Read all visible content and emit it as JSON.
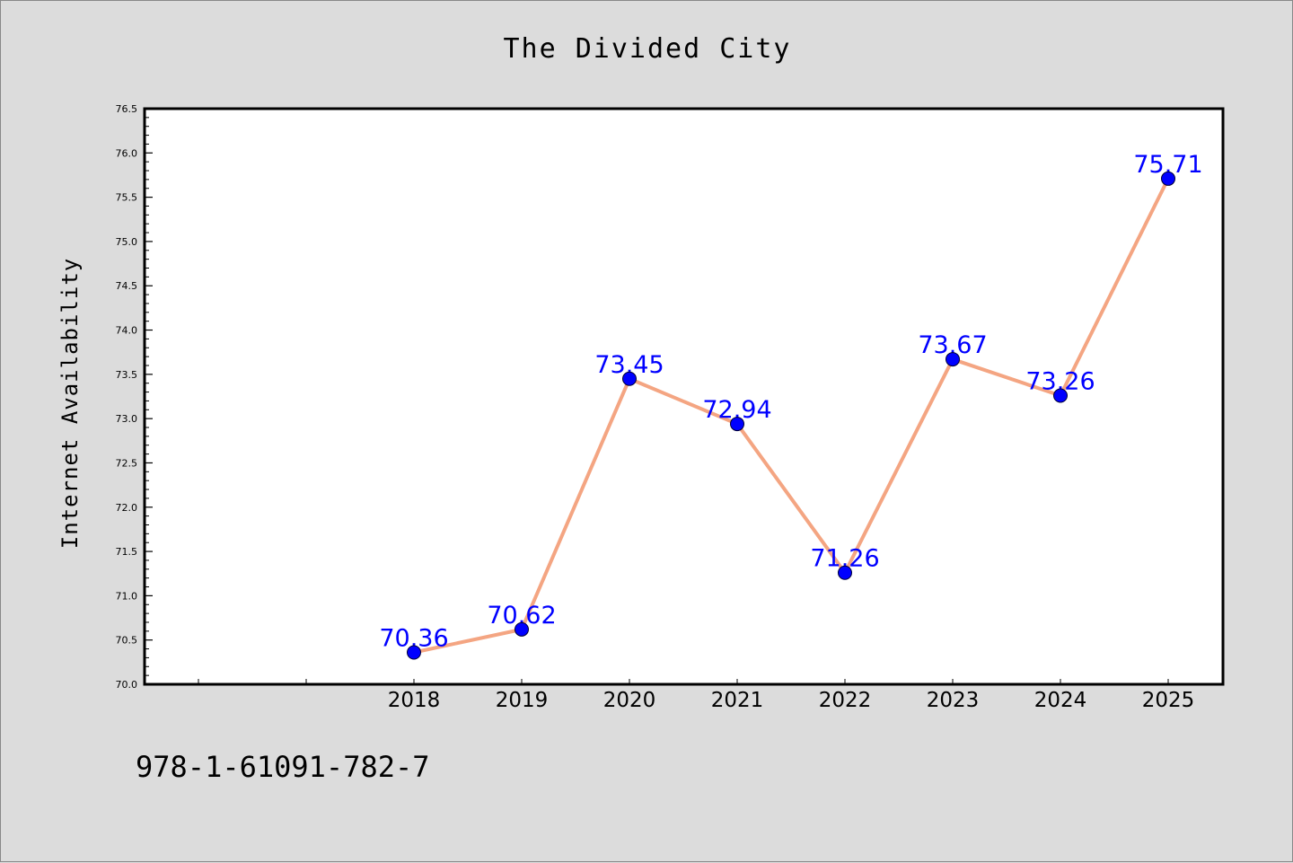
{
  "chart_data": {
    "type": "line",
    "title": "The Divided City",
    "xlabel": "",
    "ylabel": "Internet Availability",
    "categories": [
      "2018",
      "2019",
      "2020",
      "2021",
      "2022",
      "2023",
      "2024",
      "2025"
    ],
    "x_extra_positions": 2,
    "values": [
      70.36,
      70.62,
      73.45,
      72.94,
      71.26,
      73.67,
      73.26,
      75.71
    ],
    "data_labels": [
      "70.36",
      "70.62",
      "73.45",
      "72.94",
      "71.26",
      "73.67",
      "73.26",
      "75.71"
    ],
    "ylim": [
      70.0,
      76.5
    ],
    "yticks": [
      "70.0",
      "70.5",
      "71.0",
      "71.5",
      "72.0",
      "72.5",
      "73.0",
      "73.5",
      "74.0",
      "74.5",
      "75.0",
      "75.5",
      "76.0",
      "76.5"
    ],
    "grid": false,
    "legend": "none",
    "colors": {
      "line": "#f4a582",
      "marker": "#0000ff",
      "data_label": "#0000ff",
      "plot_bg": "#ffffff",
      "figure_bg": "#dcdcdc"
    }
  },
  "footer_note": "978-1-61091-782-7"
}
